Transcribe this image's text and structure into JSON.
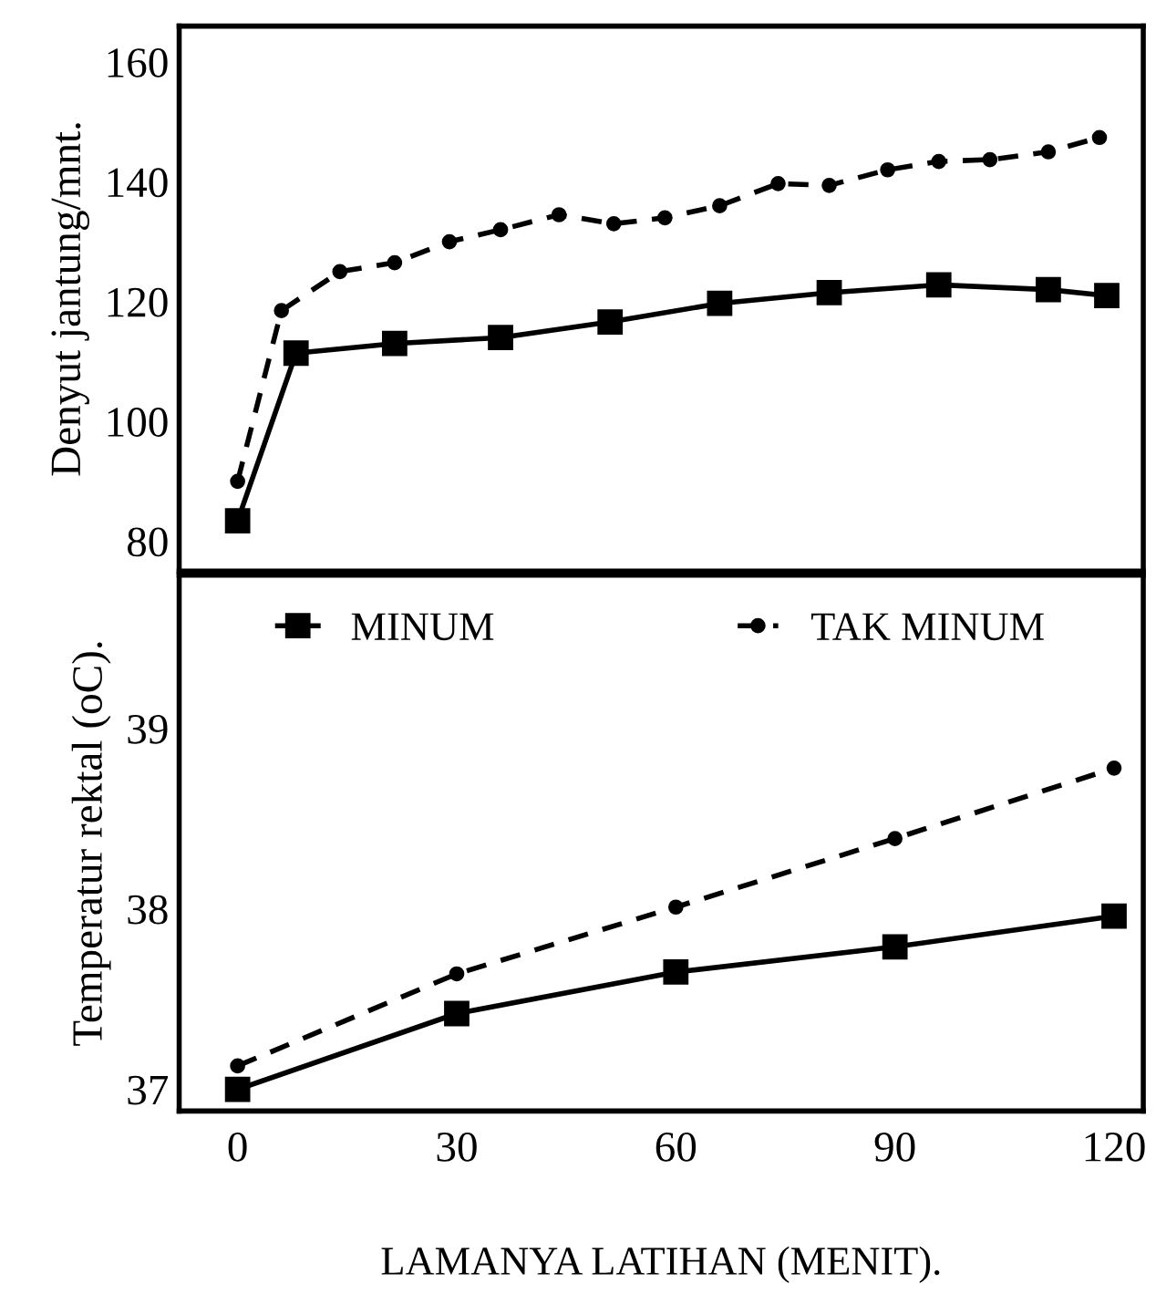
{
  "chart_data": [
    {
      "type": "line",
      "ylabel": "Denyut jantung/mnt.",
      "xlim": [
        -8,
        124
      ],
      "ylim": [
        75,
        166
      ],
      "yticks": [
        80,
        100,
        120,
        140,
        160
      ],
      "tick_labels": "y",
      "grid": false,
      "legend": false,
      "series": [
        {
          "color": "#000000",
          "marker": "square",
          "line_style": "solid",
          "x": [
            0,
            8,
            21.5,
            36,
            51,
            66,
            81,
            96,
            111,
            119
          ],
          "values": [
            83.4,
            111.4,
            113,
            114,
            116.6,
            119.7,
            121.5,
            122.8,
            122,
            121
          ]
        },
        {
          "color": "#000000",
          "marker": "circle",
          "line_style": "dashed",
          "x": [
            0,
            6,
            14,
            21.5,
            29,
            36,
            44,
            51.5,
            58.5,
            66,
            74,
            81,
            89,
            96,
            103,
            111,
            118
          ],
          "values": [
            90,
            118.5,
            125,
            126.5,
            130,
            132,
            134.5,
            133,
            134,
            136,
            139.7,
            139.4,
            142,
            143.4,
            143.7,
            145,
            147.4
          ]
        }
      ]
    },
    {
      "type": "line",
      "xlabel": "LAMANYA LATIHAN (MENIT).",
      "ylabel": "Temperatur rektal (oC).",
      "xlim": [
        -8,
        124
      ],
      "ylim": [
        36.88,
        39.85
      ],
      "xticks": [
        0,
        30,
        60,
        90,
        120
      ],
      "yticks": [
        37,
        38,
        39
      ],
      "grid": false,
      "legend": "top",
      "series": [
        {
          "name": "MINUM",
          "color": "#000000",
          "marker": "square",
          "line_style": "solid",
          "x": [
            0,
            30,
            60,
            90,
            120
          ],
          "values": [
            37.0,
            37.42,
            37.65,
            37.79,
            37.96
          ]
        },
        {
          "name": "TAK MINUM",
          "color": "#000000",
          "marker": "circle",
          "line_style": "dashed",
          "x": [
            0,
            30,
            60,
            90,
            120
          ],
          "values": [
            37.13,
            37.64,
            38.01,
            38.39,
            38.78
          ]
        }
      ]
    }
  ]
}
